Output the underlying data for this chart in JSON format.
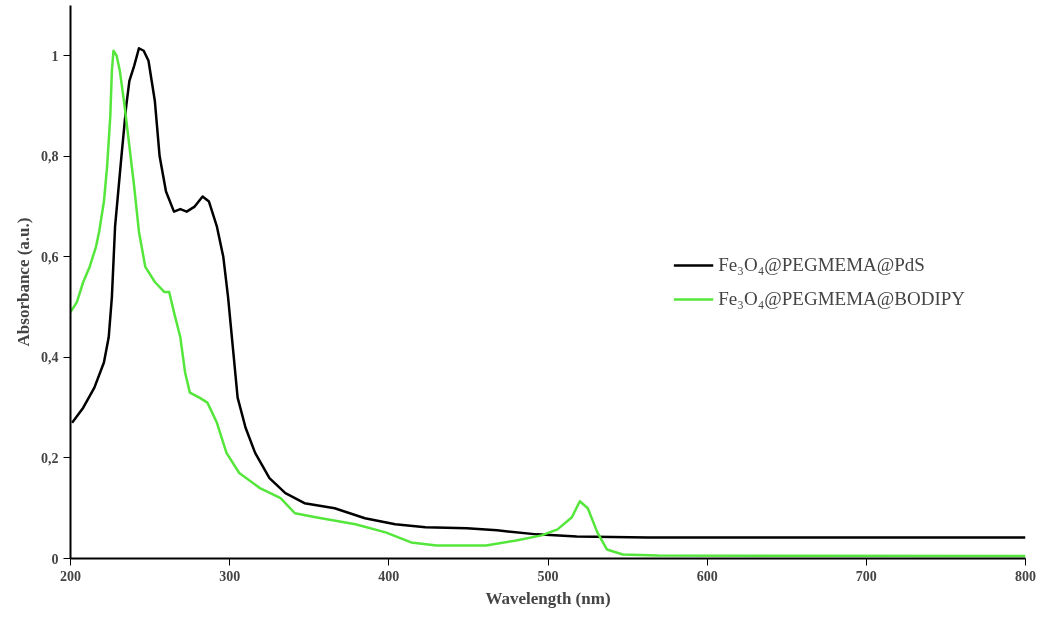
{
  "chart_data": {
    "type": "line",
    "xlabel": "Wavelength (nm)",
    "ylabel": "Absorbance (a.u.)",
    "xlim": [
      200,
      800
    ],
    "xticks": [
      200,
      300,
      400,
      500,
      600,
      700,
      800
    ],
    "ylim": [
      0,
      1.1
    ],
    "yticks": [
      0,
      {
        "value": 0.2,
        "label": "0,2"
      },
      {
        "value": 0.4,
        "label": "0,4"
      },
      {
        "value": 0.6,
        "label": "0,6"
      },
      {
        "value": 0.8,
        "label": "0,8"
      },
      1
    ],
    "grid": false,
    "legend": "right",
    "line_style": "solid",
    "marker": "none",
    "series": [
      {
        "name": "Fe₃O₄@PEGMEMA@PdS",
        "color": "#000000",
        "x": [
          201,
          208,
          215,
          221,
          224,
          226,
          228,
          232,
          235,
          237,
          240,
          243,
          246,
          249,
          253,
          256,
          260,
          265,
          269,
          273,
          278,
          283,
          287,
          292,
          296,
          299,
          302,
          305,
          310,
          316,
          325,
          335,
          347,
          366,
          385,
          404,
          423,
          449,
          468,
          493,
          518,
          563,
          658,
          800
        ],
        "values": [
          0.27,
          0.3,
          0.34,
          0.39,
          0.44,
          0.52,
          0.66,
          0.8,
          0.9,
          0.95,
          0.98,
          1.015,
          1.01,
          0.99,
          0.91,
          0.8,
          0.73,
          0.69,
          0.695,
          0.69,
          0.7,
          0.72,
          0.71,
          0.66,
          0.6,
          0.52,
          0.42,
          0.32,
          0.26,
          0.21,
          0.16,
          0.13,
          0.11,
          0.1,
          0.08,
          0.068,
          0.062,
          0.06,
          0.056,
          0.048,
          0.044,
          0.042,
          0.042,
          0.042
        ]
      },
      {
        "name": "Fe₃O₄@PEGMEMA@BODIPY",
        "color": "#55e63c",
        "x": [
          200,
          204,
          208,
          212,
          216,
          218,
          221,
          223,
          225,
          226,
          227,
          229,
          231,
          234,
          237,
          240,
          243,
          247,
          253,
          259,
          262,
          265,
          269,
          272,
          275,
          281,
          286,
          292,
          298,
          306,
          319,
          332,
          341,
          354,
          379,
          398,
          414,
          430,
          461,
          480,
          496,
          506,
          515,
          520,
          525,
          531,
          537,
          547,
          569,
          800
        ],
        "values": [
          0.49,
          0.51,
          0.55,
          0.58,
          0.62,
          0.65,
          0.71,
          0.78,
          0.88,
          0.97,
          1.01,
          1.0,
          0.97,
          0.9,
          0.82,
          0.74,
          0.65,
          0.58,
          0.55,
          0.53,
          0.53,
          0.49,
          0.44,
          0.37,
          0.33,
          0.32,
          0.31,
          0.27,
          0.21,
          0.17,
          0.14,
          0.12,
          0.09,
          0.082,
          0.068,
          0.052,
          0.032,
          0.026,
          0.026,
          0.036,
          0.046,
          0.058,
          0.082,
          0.114,
          0.1,
          0.052,
          0.018,
          0.008,
          0.006,
          0.005
        ]
      }
    ]
  }
}
